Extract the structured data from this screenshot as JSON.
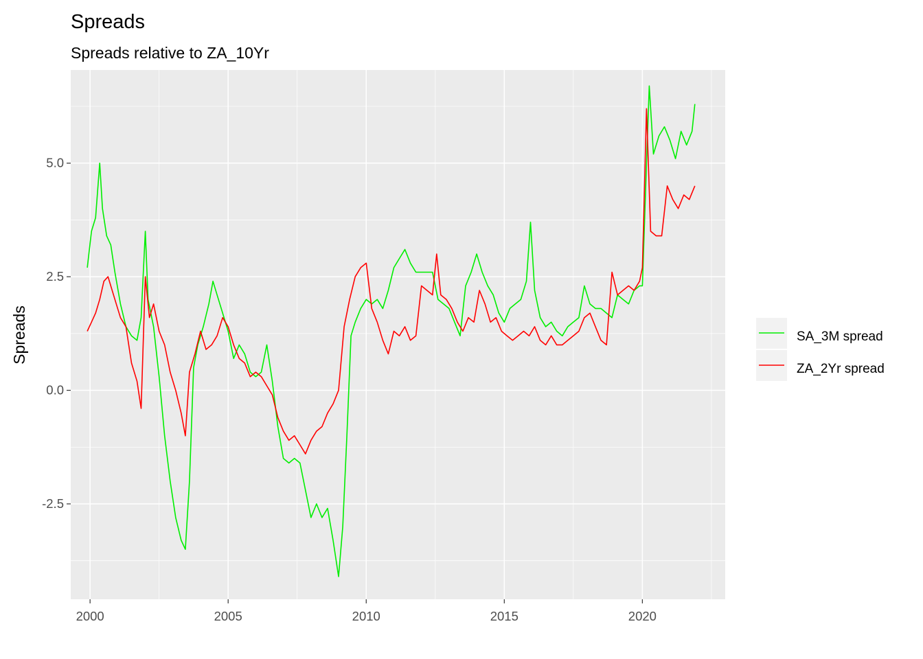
{
  "chart_data": {
    "type": "line",
    "title": "Spreads",
    "subtitle": "Spreads relative to ZA_10Yr",
    "xlabel": "",
    "ylabel": "Spreads",
    "xlim": [
      1999.3,
      2023.0
    ],
    "ylim": [
      -4.6,
      7.05
    ],
    "x_ticks": [
      2000,
      2005,
      2010,
      2015,
      2020
    ],
    "x_tick_labels": [
      "2000",
      "2005",
      "2010",
      "2015",
      "2020"
    ],
    "y_ticks": [
      -2.5,
      0.0,
      2.5,
      5.0
    ],
    "y_tick_labels": [
      "-2.5",
      "0.0",
      "2.5",
      "5.0"
    ],
    "grid": true,
    "legend_position": "right",
    "colors": {
      "panel": "#ebebeb",
      "grid": "#ffffff",
      "green": "#00ee00",
      "red": "#ff0000"
    },
    "series": [
      {
        "name": "SA_3M spread",
        "color": "#00ee00",
        "points": [
          [
            1999.9,
            2.7
          ],
          [
            2000.05,
            3.5
          ],
          [
            2000.2,
            3.8
          ],
          [
            2000.35,
            5.0
          ],
          [
            2000.45,
            4.0
          ],
          [
            2000.6,
            3.4
          ],
          [
            2000.75,
            3.2
          ],
          [
            2000.9,
            2.6
          ],
          [
            2001.1,
            1.9
          ],
          [
            2001.3,
            1.4
          ],
          [
            2001.5,
            1.2
          ],
          [
            2001.7,
            1.1
          ],
          [
            2001.85,
            1.6
          ],
          [
            2002.0,
            3.5
          ],
          [
            2002.1,
            2.0
          ],
          [
            2002.3,
            1.4
          ],
          [
            2002.5,
            0.3
          ],
          [
            2002.7,
            -1.0
          ],
          [
            2002.9,
            -2.0
          ],
          [
            2003.1,
            -2.8
          ],
          [
            2003.3,
            -3.3
          ],
          [
            2003.45,
            -3.5
          ],
          [
            2003.6,
            -2.0
          ],
          [
            2003.75,
            0.5
          ],
          [
            2003.9,
            1.0
          ],
          [
            2004.1,
            1.4
          ],
          [
            2004.3,
            1.9
          ],
          [
            2004.45,
            2.4
          ],
          [
            2004.6,
            2.1
          ],
          [
            2004.8,
            1.7
          ],
          [
            2005.0,
            1.3
          ],
          [
            2005.2,
            0.7
          ],
          [
            2005.4,
            1.0
          ],
          [
            2005.6,
            0.8
          ],
          [
            2005.8,
            0.4
          ],
          [
            2006.0,
            0.3
          ],
          [
            2006.2,
            0.4
          ],
          [
            2006.4,
            1.0
          ],
          [
            2006.6,
            0.2
          ],
          [
            2006.8,
            -0.8
          ],
          [
            2007.0,
            -1.5
          ],
          [
            2007.2,
            -1.6
          ],
          [
            2007.4,
            -1.5
          ],
          [
            2007.6,
            -1.6
          ],
          [
            2007.8,
            -2.2
          ],
          [
            2008.0,
            -2.8
          ],
          [
            2008.2,
            -2.5
          ],
          [
            2008.4,
            -2.8
          ],
          [
            2008.6,
            -2.6
          ],
          [
            2008.8,
            -3.3
          ],
          [
            2009.0,
            -4.1
          ],
          [
            2009.15,
            -3.0
          ],
          [
            2009.3,
            -1.0
          ],
          [
            2009.45,
            1.2
          ],
          [
            2009.6,
            1.5
          ],
          [
            2009.8,
            1.8
          ],
          [
            2010.0,
            2.0
          ],
          [
            2010.2,
            1.9
          ],
          [
            2010.4,
            2.0
          ],
          [
            2010.6,
            1.8
          ],
          [
            2010.8,
            2.2
          ],
          [
            2011.0,
            2.7
          ],
          [
            2011.2,
            2.9
          ],
          [
            2011.4,
            3.1
          ],
          [
            2011.6,
            2.8
          ],
          [
            2011.8,
            2.6
          ],
          [
            2012.0,
            2.6
          ],
          [
            2012.2,
            2.6
          ],
          [
            2012.4,
            2.6
          ],
          [
            2012.6,
            2.0
          ],
          [
            2012.8,
            1.9
          ],
          [
            2013.0,
            1.8
          ],
          [
            2013.2,
            1.5
          ],
          [
            2013.4,
            1.2
          ],
          [
            2013.6,
            2.3
          ],
          [
            2013.8,
            2.6
          ],
          [
            2014.0,
            3.0
          ],
          [
            2014.2,
            2.6
          ],
          [
            2014.4,
            2.3
          ],
          [
            2014.6,
            2.1
          ],
          [
            2014.8,
            1.7
          ],
          [
            2015.0,
            1.5
          ],
          [
            2015.2,
            1.8
          ],
          [
            2015.4,
            1.9
          ],
          [
            2015.6,
            2.0
          ],
          [
            2015.8,
            2.4
          ],
          [
            2015.95,
            3.7
          ],
          [
            2016.1,
            2.2
          ],
          [
            2016.3,
            1.6
          ],
          [
            2016.5,
            1.4
          ],
          [
            2016.7,
            1.5
          ],
          [
            2016.9,
            1.3
          ],
          [
            2017.1,
            1.2
          ],
          [
            2017.3,
            1.4
          ],
          [
            2017.5,
            1.5
          ],
          [
            2017.7,
            1.6
          ],
          [
            2017.9,
            2.3
          ],
          [
            2018.1,
            1.9
          ],
          [
            2018.3,
            1.8
          ],
          [
            2018.5,
            1.8
          ],
          [
            2018.7,
            1.7
          ],
          [
            2018.9,
            1.6
          ],
          [
            2019.1,
            2.1
          ],
          [
            2019.3,
            2.0
          ],
          [
            2019.5,
            1.9
          ],
          [
            2019.7,
            2.2
          ],
          [
            2019.9,
            2.3
          ],
          [
            2020.0,
            2.3
          ],
          [
            2020.15,
            5.0
          ],
          [
            2020.25,
            6.7
          ],
          [
            2020.4,
            5.2
          ],
          [
            2020.6,
            5.6
          ],
          [
            2020.8,
            5.8
          ],
          [
            2021.0,
            5.5
          ],
          [
            2021.2,
            5.1
          ],
          [
            2021.4,
            5.7
          ],
          [
            2021.6,
            5.4
          ],
          [
            2021.8,
            5.7
          ],
          [
            2021.9,
            6.3
          ]
        ]
      },
      {
        "name": "ZA_2Yr spread",
        "color": "#ff0000",
        "points": [
          [
            1999.9,
            1.3
          ],
          [
            2000.05,
            1.5
          ],
          [
            2000.2,
            1.7
          ],
          [
            2000.35,
            2.0
          ],
          [
            2000.5,
            2.4
          ],
          [
            2000.65,
            2.5
          ],
          [
            2000.8,
            2.2
          ],
          [
            2000.95,
            1.9
          ],
          [
            2001.1,
            1.6
          ],
          [
            2001.3,
            1.4
          ],
          [
            2001.5,
            0.6
          ],
          [
            2001.7,
            0.2
          ],
          [
            2001.85,
            -0.4
          ],
          [
            2002.0,
            2.5
          ],
          [
            2002.15,
            1.6
          ],
          [
            2002.3,
            1.9
          ],
          [
            2002.5,
            1.3
          ],
          [
            2002.7,
            1.0
          ],
          [
            2002.9,
            0.4
          ],
          [
            2003.1,
            0.0
          ],
          [
            2003.3,
            -0.5
          ],
          [
            2003.45,
            -1.0
          ],
          [
            2003.6,
            0.4
          ],
          [
            2003.8,
            0.8
          ],
          [
            2004.0,
            1.3
          ],
          [
            2004.2,
            0.9
          ],
          [
            2004.4,
            1.0
          ],
          [
            2004.6,
            1.2
          ],
          [
            2004.8,
            1.6
          ],
          [
            2005.0,
            1.4
          ],
          [
            2005.2,
            1.0
          ],
          [
            2005.4,
            0.7
          ],
          [
            2005.6,
            0.6
          ],
          [
            2005.8,
            0.3
          ],
          [
            2006.0,
            0.4
          ],
          [
            2006.2,
            0.3
          ],
          [
            2006.4,
            0.1
          ],
          [
            2006.6,
            -0.1
          ],
          [
            2006.8,
            -0.6
          ],
          [
            2007.0,
            -0.9
          ],
          [
            2007.2,
            -1.1
          ],
          [
            2007.4,
            -1.0
          ],
          [
            2007.6,
            -1.2
          ],
          [
            2007.8,
            -1.4
          ],
          [
            2008.0,
            -1.1
          ],
          [
            2008.2,
            -0.9
          ],
          [
            2008.4,
            -0.8
          ],
          [
            2008.6,
            -0.5
          ],
          [
            2008.8,
            -0.3
          ],
          [
            2009.0,
            0.0
          ],
          [
            2009.2,
            1.4
          ],
          [
            2009.4,
            2.0
          ],
          [
            2009.6,
            2.5
          ],
          [
            2009.8,
            2.7
          ],
          [
            2010.0,
            2.8
          ],
          [
            2010.2,
            1.8
          ],
          [
            2010.4,
            1.5
          ],
          [
            2010.6,
            1.1
          ],
          [
            2010.8,
            0.8
          ],
          [
            2011.0,
            1.3
          ],
          [
            2011.2,
            1.2
          ],
          [
            2011.4,
            1.4
          ],
          [
            2011.6,
            1.1
          ],
          [
            2011.8,
            1.2
          ],
          [
            2012.0,
            2.3
          ],
          [
            2012.2,
            2.2
          ],
          [
            2012.4,
            2.1
          ],
          [
            2012.55,
            3.0
          ],
          [
            2012.7,
            2.1
          ],
          [
            2012.9,
            2.0
          ],
          [
            2013.1,
            1.8
          ],
          [
            2013.3,
            1.5
          ],
          [
            2013.5,
            1.3
          ],
          [
            2013.7,
            1.6
          ],
          [
            2013.9,
            1.5
          ],
          [
            2014.1,
            2.2
          ],
          [
            2014.3,
            1.9
          ],
          [
            2014.5,
            1.5
          ],
          [
            2014.7,
            1.6
          ],
          [
            2014.9,
            1.3
          ],
          [
            2015.1,
            1.2
          ],
          [
            2015.3,
            1.1
          ],
          [
            2015.5,
            1.2
          ],
          [
            2015.7,
            1.3
          ],
          [
            2015.9,
            1.2
          ],
          [
            2016.1,
            1.4
          ],
          [
            2016.3,
            1.1
          ],
          [
            2016.5,
            1.0
          ],
          [
            2016.7,
            1.2
          ],
          [
            2016.9,
            1.0
          ],
          [
            2017.1,
            1.0
          ],
          [
            2017.3,
            1.1
          ],
          [
            2017.5,
            1.2
          ],
          [
            2017.7,
            1.3
          ],
          [
            2017.9,
            1.6
          ],
          [
            2018.1,
            1.7
          ],
          [
            2018.3,
            1.4
          ],
          [
            2018.5,
            1.1
          ],
          [
            2018.7,
            1.0
          ],
          [
            2018.9,
            2.6
          ],
          [
            2019.1,
            2.1
          ],
          [
            2019.3,
            2.2
          ],
          [
            2019.5,
            2.3
          ],
          [
            2019.7,
            2.2
          ],
          [
            2019.9,
            2.4
          ],
          [
            2020.0,
            2.7
          ],
          [
            2020.15,
            6.2
          ],
          [
            2020.3,
            3.5
          ],
          [
            2020.5,
            3.4
          ],
          [
            2020.7,
            3.4
          ],
          [
            2020.9,
            4.5
          ],
          [
            2021.1,
            4.2
          ],
          [
            2021.3,
            4.0
          ],
          [
            2021.5,
            4.3
          ],
          [
            2021.7,
            4.2
          ],
          [
            2021.9,
            4.5
          ]
        ]
      }
    ]
  }
}
